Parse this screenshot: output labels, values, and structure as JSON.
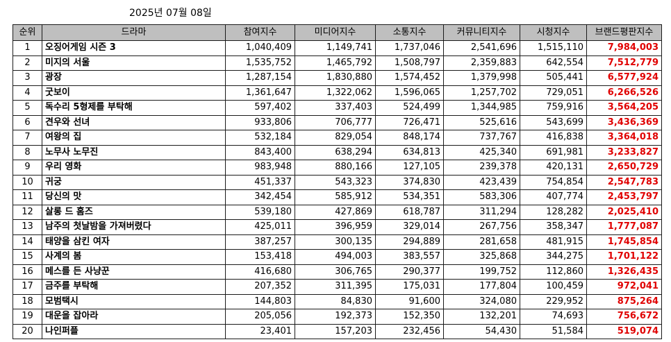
{
  "date": "2025년 07월 08일",
  "accent_color": "#e00000",
  "headers": [
    "순위",
    "드라마",
    "참여지수",
    "미디어지수",
    "소통지수",
    "커뮤니티지수",
    "시청지수",
    "브랜드평판지수"
  ],
  "rows": [
    {
      "rank": "1",
      "title": "오징어게임 시즌 3",
      "participation": "1,040,409",
      "media": "1,149,741",
      "communication": "1,737,046",
      "community": "2,541,696",
      "viewing": "1,515,110",
      "brand": "7,984,003"
    },
    {
      "rank": "2",
      "title": "미지의 서울",
      "participation": "1,535,752",
      "media": "1,465,792",
      "communication": "1,508,797",
      "community": "2,359,883",
      "viewing": "642,554",
      "brand": "7,512,779"
    },
    {
      "rank": "3",
      "title": "광장",
      "participation": "1,287,154",
      "media": "1,830,880",
      "communication": "1,574,452",
      "community": "1,379,998",
      "viewing": "505,441",
      "brand": "6,577,924"
    },
    {
      "rank": "4",
      "title": "굿보이",
      "participation": "1,361,647",
      "media": "1,322,062",
      "communication": "1,596,065",
      "community": "1,257,702",
      "viewing": "729,051",
      "brand": "6,266,526"
    },
    {
      "rank": "5",
      "title": "독수리 5형제를 부탁해",
      "participation": "597,402",
      "media": "337,403",
      "communication": "524,499",
      "community": "1,344,985",
      "viewing": "759,916",
      "brand": "3,564,205"
    },
    {
      "rank": "6",
      "title": "견우와 선녀",
      "participation": "933,806",
      "media": "706,777",
      "communication": "726,471",
      "community": "525,616",
      "viewing": "543,699",
      "brand": "3,436,369"
    },
    {
      "rank": "7",
      "title": "여왕의 집",
      "participation": "532,184",
      "media": "829,054",
      "communication": "848,174",
      "community": "737,767",
      "viewing": "416,838",
      "brand": "3,364,018"
    },
    {
      "rank": "8",
      "title": "노무사 노무진",
      "participation": "843,400",
      "media": "638,294",
      "communication": "634,813",
      "community": "425,340",
      "viewing": "691,981",
      "brand": "3,233,827"
    },
    {
      "rank": "9",
      "title": "우리 영화",
      "participation": "983,948",
      "media": "880,166",
      "communication": "127,105",
      "community": "239,378",
      "viewing": "420,131",
      "brand": "2,650,729"
    },
    {
      "rank": "10",
      "title": "귀궁",
      "participation": "451,337",
      "media": "543,323",
      "communication": "374,830",
      "community": "423,439",
      "viewing": "754,854",
      "brand": "2,547,783"
    },
    {
      "rank": "11",
      "title": "당신의 맛",
      "participation": "342,454",
      "media": "585,912",
      "communication": "534,351",
      "community": "583,306",
      "viewing": "407,774",
      "brand": "2,453,797"
    },
    {
      "rank": "12",
      "title": "살롱 드 홈즈",
      "participation": "539,180",
      "media": "427,869",
      "communication": "618,787",
      "community": "311,294",
      "viewing": "128,282",
      "brand": "2,025,410"
    },
    {
      "rank": "13",
      "title": "남주의 첫날밤을 가져버렸다",
      "participation": "425,011",
      "media": "396,959",
      "communication": "329,014",
      "community": "267,756",
      "viewing": "358,347",
      "brand": "1,777,087"
    },
    {
      "rank": "14",
      "title": "태양을 삼킨 여자",
      "participation": "387,257",
      "media": "300,135",
      "communication": "294,889",
      "community": "281,658",
      "viewing": "481,915",
      "brand": "1,745,854"
    },
    {
      "rank": "15",
      "title": "사계의 봄",
      "participation": "153,418",
      "media": "494,003",
      "communication": "383,557",
      "community": "325,868",
      "viewing": "344,275",
      "brand": "1,701,122"
    },
    {
      "rank": "16",
      "title": "메스를 든 사냥꾼",
      "participation": "416,680",
      "media": "306,765",
      "communication": "290,377",
      "community": "199,752",
      "viewing": "112,860",
      "brand": "1,326,435"
    },
    {
      "rank": "17",
      "title": "금주를 부탁해",
      "participation": "207,352",
      "media": "311,395",
      "communication": "175,031",
      "community": "177,804",
      "viewing": "100,459",
      "brand": "972,041"
    },
    {
      "rank": "18",
      "title": "모범택시",
      "participation": "144,803",
      "media": "84,830",
      "communication": "91,600",
      "community": "324,080",
      "viewing": "229,952",
      "brand": "875,264"
    },
    {
      "rank": "19",
      "title": "대운을 잡아라",
      "participation": "205,056",
      "media": "192,373",
      "communication": "152,350",
      "community": "132,201",
      "viewing": "74,693",
      "brand": "756,672"
    },
    {
      "rank": "20",
      "title": "나인퍼플",
      "participation": "23,401",
      "media": "157,203",
      "communication": "232,456",
      "community": "54,430",
      "viewing": "51,584",
      "brand": "519,074"
    }
  ]
}
